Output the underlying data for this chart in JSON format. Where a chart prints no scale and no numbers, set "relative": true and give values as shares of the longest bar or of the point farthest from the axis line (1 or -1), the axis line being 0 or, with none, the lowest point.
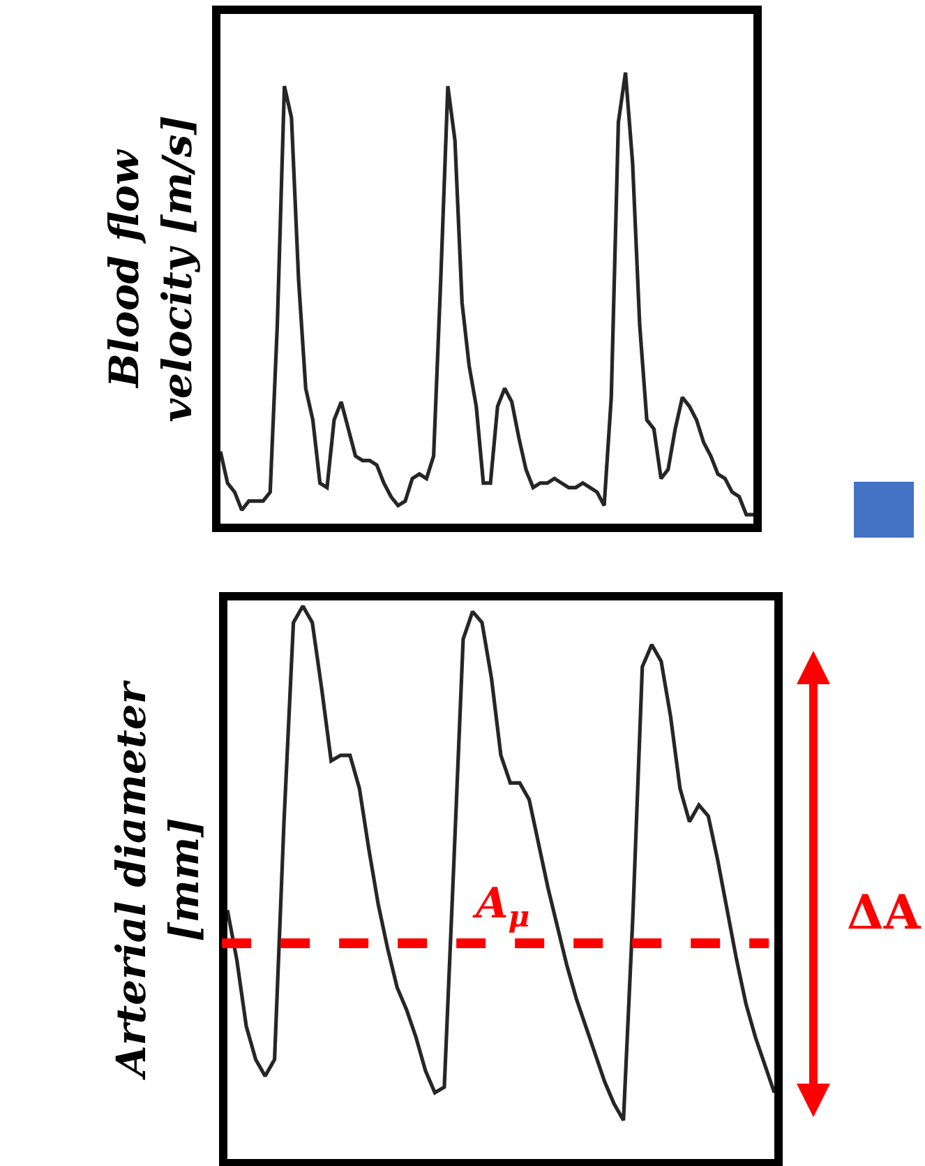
{
  "chart_data": [
    {
      "type": "line",
      "ylabel": "Blood flow\nvelocity [m/s]",
      "relative": true,
      "grid": false,
      "legend": false,
      "categories": [
        null,
        null,
        null,
        null,
        null,
        null,
        null,
        null,
        null,
        null,
        null,
        null,
        null,
        null,
        null,
        null,
        null,
        null,
        null,
        null,
        null,
        null,
        null,
        null,
        null,
        null,
        null,
        null,
        null,
        null,
        null,
        null,
        null,
        null,
        null,
        null,
        null,
        null,
        null,
        null,
        null,
        null,
        null,
        null,
        null,
        null,
        null,
        null,
        null,
        null,
        null,
        null,
        null,
        null,
        null,
        null,
        null,
        null,
        null,
        null,
        null,
        null,
        null,
        null,
        null,
        null,
        null,
        null,
        null,
        null,
        null,
        null,
        null,
        null,
        null,
        null
      ],
      "series": [
        {
          "color": "#262626",
          "values": [
            0.16,
            0.09,
            0.07,
            0.03,
            0.05,
            0.05,
            0.05,
            0.07,
            0.44,
            0.97,
            0.9,
            0.54,
            0.3,
            0.23,
            0.09,
            0.08,
            0.23,
            0.27,
            0.21,
            0.15,
            0.14,
            0.14,
            0.13,
            0.09,
            0.06,
            0.04,
            0.05,
            0.1,
            0.11,
            0.1,
            0.15,
            0.54,
            0.97,
            0.85,
            0.49,
            0.35,
            0.26,
            0.09,
            0.09,
            0.26,
            0.3,
            0.27,
            0.19,
            0.12,
            0.08,
            0.09,
            0.09,
            0.1,
            0.09,
            0.08,
            0.08,
            0.09,
            0.08,
            0.07,
            0.04,
            0.28,
            0.89,
            1,
            0.8,
            0.44,
            0.23,
            0.21,
            0.1,
            0.12,
            0.21,
            0.28,
            0.26,
            0.23,
            0.18,
            0.15,
            0.11,
            0.1,
            0.07,
            0.06,
            0.02,
            0.02
          ]
        }
      ]
    },
    {
      "type": "line",
      "ylabel": "Arterial diameter\n[mm]",
      "relative": true,
      "grid": false,
      "legend": false,
      "categories": [
        null,
        null,
        null,
        null,
        null,
        null,
        null,
        null,
        null,
        null,
        null,
        null,
        null,
        null,
        null,
        null,
        null,
        null,
        null,
        null,
        null,
        null,
        null,
        null,
        null,
        null,
        null,
        null,
        null,
        null,
        null,
        null,
        null,
        null,
        null,
        null,
        null,
        null,
        null,
        null,
        null,
        null,
        null,
        null,
        null,
        null,
        null,
        null,
        null,
        null,
        null,
        null,
        null,
        null,
        null,
        null,
        null,
        null,
        null
      ],
      "series": [
        {
          "color": "#262626",
          "values": [
            0.45,
            0.36,
            0.24,
            0.18,
            0.15,
            0.18,
            0.61,
            0.97,
            1.0,
            0.97,
            0.85,
            0.72,
            0.73,
            0.73,
            0.67,
            0.56,
            0.46,
            0.38,
            0.31,
            0.27,
            0.22,
            0.16,
            0.12,
            0.13,
            0.53,
            0.94,
            0.99,
            0.97,
            0.87,
            0.73,
            0.68,
            0.68,
            0.65,
            0.57,
            0.49,
            0.42,
            0.35,
            0.29,
            0.24,
            0.19,
            0.14,
            0.1,
            0.07,
            0.44,
            0.89,
            0.93,
            0.9,
            0.8,
            0.67,
            0.61,
            0.64,
            0.62,
            0.54,
            0.45,
            0.36,
            0.28,
            0.22,
            0.17,
            0.12
          ]
        }
      ],
      "ref_lines": [
        {
          "axis": "y",
          "value": 0.39,
          "label": "A$_{μ}$",
          "color": "#ff0000",
          "line_style": "dashed"
        }
      ],
      "annotations": [
        "ΔA"
      ]
    }
  ]
}
